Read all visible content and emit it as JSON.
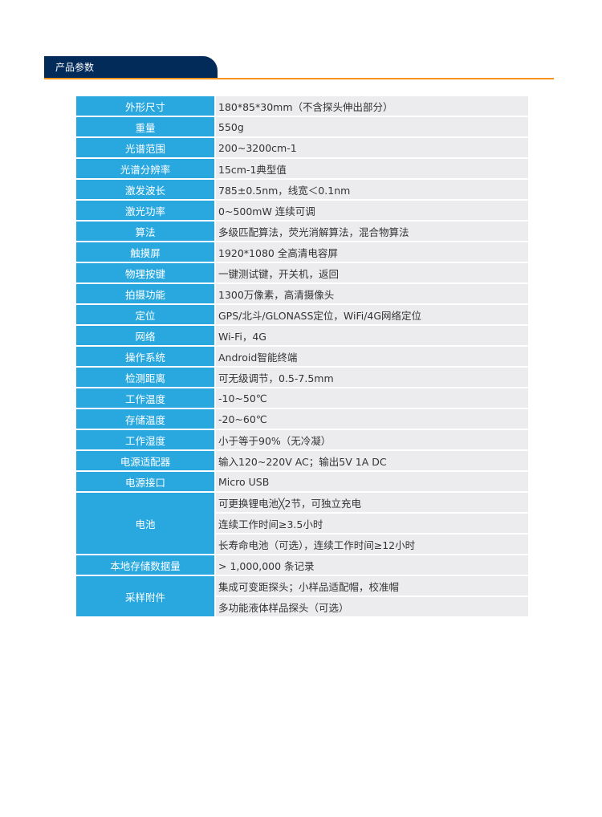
{
  "section_title": "产品参数",
  "colors": {
    "header_bg": "#022b5a",
    "accent_line": "#f7941d",
    "label_bg": "#29a8e0",
    "value_bg": "#ececee"
  },
  "specs": [
    {
      "label": "外形尺寸",
      "values": [
        "180*85*30mm（不含探头伸出部分）"
      ]
    },
    {
      "label": "重量",
      "values": [
        "550g"
      ]
    },
    {
      "label": "光谱范围",
      "values": [
        "200~3200cm-1"
      ]
    },
    {
      "label": "光谱分辨率",
      "values": [
        "15cm-1典型值"
      ]
    },
    {
      "label": "激发波长",
      "values": [
        "785±0.5nm，线宽＜0.1nm"
      ]
    },
    {
      "label": "激光功率",
      "values": [
        "0~500mW 连续可调"
      ]
    },
    {
      "label": "算法",
      "values": [
        "多级匹配算法，荧光消解算法，混合物算法"
      ]
    },
    {
      "label": "触摸屏",
      "values": [
        "1920*1080 全高清电容屏"
      ]
    },
    {
      "label": "物理按键",
      "values": [
        "一键测试键，开关机，返回"
      ]
    },
    {
      "label": "拍摄功能",
      "values": [
        "1300万像素，高清摄像头"
      ]
    },
    {
      "label": "定位",
      "values": [
        "GPS/北斗/GLONASS定位，WiFi/4G网络定位"
      ]
    },
    {
      "label": "网络",
      "values": [
        "Wi-Fi，4G"
      ]
    },
    {
      "label": "操作系统",
      "values": [
        "Android智能终端"
      ]
    },
    {
      "label": "检测距离",
      "values": [
        "可无级调节，0.5-7.5mm"
      ]
    },
    {
      "label": "工作温度",
      "values": [
        "-10~50℃"
      ]
    },
    {
      "label": "存储温度",
      "values": [
        "-20~60℃"
      ]
    },
    {
      "label": "工作湿度",
      "values": [
        "小于等于90%（无冷凝）"
      ]
    },
    {
      "label": "电源适配器",
      "values": [
        "输入120~220V AC；输出5V 1A DC"
      ]
    },
    {
      "label": "电源接口",
      "values": [
        "Micro USB"
      ]
    },
    {
      "label": "电池",
      "values": [
        "可更换锂电池╳2节，可独立充电",
        "连续工作时间≥3.5小时",
        "长寿命电池（可选），连续工作时间≥12小时"
      ]
    },
    {
      "label": "本地存储数据量",
      "values": [
        "> 1,000,000 条记录"
      ]
    },
    {
      "label": "采样附件",
      "values": [
        "集成可变距探头；小样品适配帽，校准帽",
        "多功能液体样品探头（可选）"
      ]
    }
  ]
}
